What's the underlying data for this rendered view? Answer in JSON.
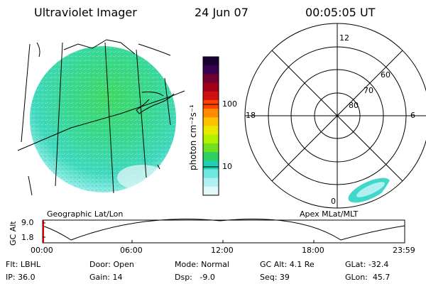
{
  "header": {
    "instrument": "Ultraviolet Imager",
    "date": "24 Jun 07",
    "time": "00:05:05 UT"
  },
  "colorbar": {
    "unit_label": "photon cm⁻²s⁻¹",
    "ticks": [
      "100",
      "10"
    ],
    "colors": [
      "#1a0030",
      "#3a0050",
      "#700030",
      "#a00018",
      "#d01010",
      "#ff4000",
      "#ff8c00",
      "#ffc000",
      "#e8e800",
      "#b0f000",
      "#70e020",
      "#30d060",
      "#20d0b0",
      "#70e8e0",
      "#b0f0f0",
      "#e0f8f8"
    ]
  },
  "geo_panel": {
    "label": "Geographic Lat/Lon"
  },
  "polar_panel": {
    "label": "Apex MLat/MLT",
    "mlt_labels": {
      "top": "12",
      "left": "18",
      "right": "6",
      "bottom": "0"
    },
    "lat_labels": [
      "60",
      "70",
      "80"
    ]
  },
  "altitude_plot": {
    "ylabel": "GC Alt",
    "yticks": [
      "9.0",
      "1.8"
    ],
    "xticks": [
      "00:00",
      "06:00",
      "12:00",
      "18:00",
      "23:59"
    ]
  },
  "info": {
    "filter": "Flt: LBHL",
    "ip": "IP: 36.0",
    "door": "Door: Open",
    "gain": "Gain: 14",
    "mode": "Mode: Normal",
    "dsp": "Dsp:   -9.0",
    "gc_alt": "GC Alt: 4.1 Re",
    "seq": "Seq: 39",
    "glat": "GLat: -32.4",
    "glon": "GLon:  45.7"
  }
}
